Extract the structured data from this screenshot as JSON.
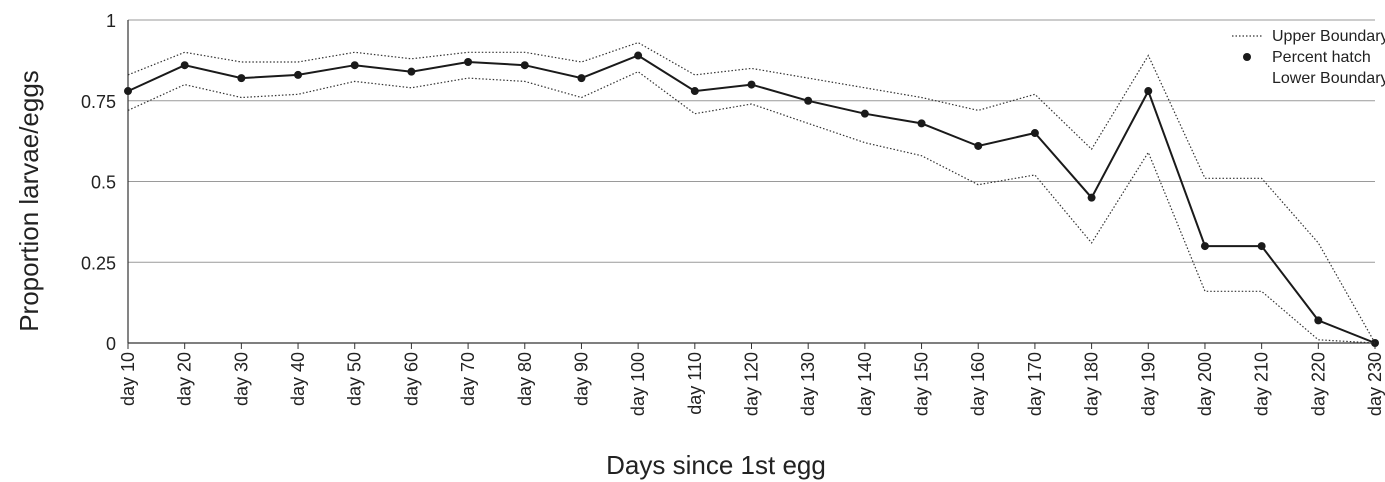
{
  "chart_data": {
    "type": "line",
    "title": "",
    "xlabel": "Days since 1st egg",
    "ylabel": "Proportion larvae/eggs",
    "ylim": [
      0,
      1
    ],
    "yticks": [
      0,
      0.25,
      0.5,
      0.75,
      1
    ],
    "ytick_labels": [
      "0",
      "0.25",
      "0.5",
      "0.75",
      "1"
    ],
    "grid": "horizontal",
    "legend_position": "top-right",
    "categories": [
      "day 10",
      "day 20",
      "day 30",
      "day 40",
      "day 50",
      "day 60",
      "day 70",
      "day 80",
      "day 90",
      "day 100",
      "day 110",
      "day 120",
      "day 130",
      "day 140",
      "day 150",
      "day 160",
      "day 170",
      "day 180",
      "day 190",
      "day 200",
      "day 210",
      "day 220",
      "day 230"
    ],
    "series": [
      {
        "name": "Upper Boundary",
        "style": "dotted",
        "color": "#333333",
        "values": [
          0.83,
          0.9,
          0.87,
          0.87,
          0.9,
          0.88,
          0.9,
          0.9,
          0.87,
          0.93,
          0.83,
          0.85,
          0.82,
          0.79,
          0.76,
          0.72,
          0.77,
          0.6,
          0.89,
          0.51,
          0.51,
          0.31,
          0.0
        ]
      },
      {
        "name": "Percent hatch",
        "style": "solid-markers",
        "color": "#1a1a1a",
        "values": [
          0.78,
          0.86,
          0.82,
          0.83,
          0.86,
          0.84,
          0.87,
          0.86,
          0.82,
          0.89,
          0.78,
          0.8,
          0.75,
          0.71,
          0.68,
          0.61,
          0.65,
          0.45,
          0.78,
          0.3,
          0.3,
          0.07,
          0.0
        ]
      },
      {
        "name": "Lower Boundary",
        "style": "dotted",
        "color": "#333333",
        "values": [
          0.72,
          0.8,
          0.76,
          0.77,
          0.81,
          0.79,
          0.82,
          0.81,
          0.76,
          0.84,
          0.71,
          0.74,
          0.68,
          0.62,
          0.58,
          0.49,
          0.52,
          0.31,
          0.59,
          0.16,
          0.16,
          0.01,
          0.0
        ]
      }
    ]
  }
}
